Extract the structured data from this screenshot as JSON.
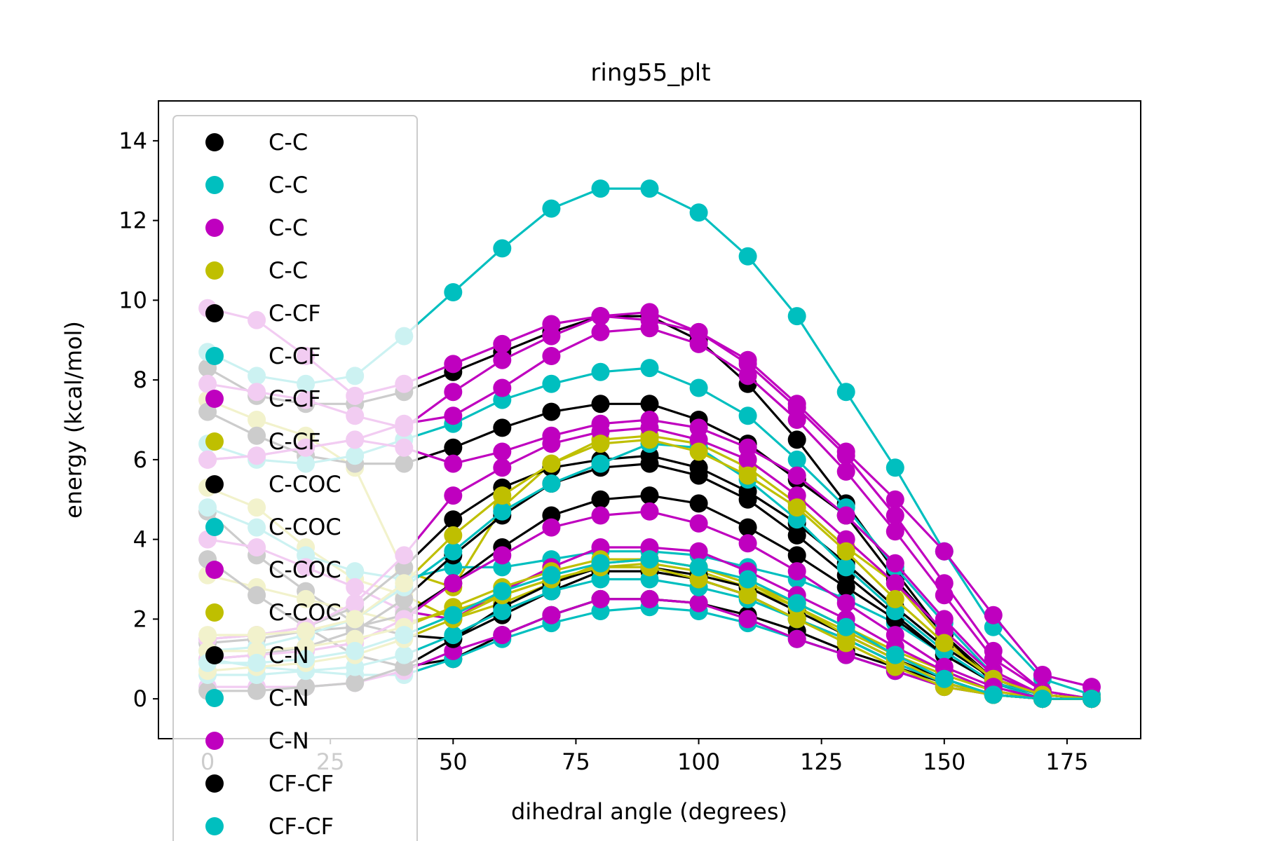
{
  "chart_data": {
    "type": "line",
    "title": "ring55_plt",
    "xlabel": "dihedral angle (degrees)",
    "ylabel": "energy (kcal/mol)",
    "xlim": [
      -10,
      190
    ],
    "ylim": [
      -1,
      15
    ],
    "x_ticks": [
      0,
      25,
      50,
      75,
      100,
      125,
      150,
      175
    ],
    "y_ticks": [
      0,
      2,
      4,
      6,
      8,
      10,
      12,
      14
    ],
    "grid": false,
    "legend_position": "upper-left",
    "x": [
      0,
      10,
      20,
      30,
      40,
      50,
      60,
      70,
      80,
      90,
      100,
      110,
      120,
      130,
      140,
      150,
      160,
      170,
      180
    ],
    "series": [
      {
        "name": "C-C",
        "color": "#000000",
        "values": [
          8.3,
          7.6,
          7.4,
          7.4,
          7.7,
          8.2,
          8.7,
          9.2,
          9.6,
          9.6,
          9.0,
          7.9,
          6.5,
          4.9,
          3.2,
          1.6,
          0.5,
          0.1,
          0.0
        ]
      },
      {
        "name": "C-C",
        "color": "#00bfbf",
        "values": [
          8.7,
          8.1,
          7.9,
          8.1,
          9.1,
          10.2,
          11.3,
          12.3,
          12.8,
          12.8,
          12.2,
          11.1,
          9.6,
          7.7,
          5.8,
          3.7,
          1.8,
          0.5,
          0.1
        ]
      },
      {
        "name": "C-C",
        "color": "#bf00bf",
        "values": [
          9.8,
          9.5,
          8.6,
          7.6,
          7.9,
          8.4,
          8.9,
          9.4,
          9.6,
          9.7,
          9.2,
          8.5,
          7.4,
          6.2,
          5.0,
          3.7,
          2.1,
          0.6,
          0.3
        ]
      },
      {
        "name": "C-C",
        "color": "#bfbf00",
        "values": [
          7.5,
          7.0,
          6.6,
          5.8,
          3.2,
          2.8,
          4.8,
          5.9,
          6.5,
          6.6,
          6.4,
          5.8,
          4.9,
          3.8,
          2.9,
          1.5,
          0.5,
          0.1,
          0.0
        ]
      },
      {
        "name": "C-CF",
        "color": "#000000",
        "values": [
          7.2,
          6.6,
          6.1,
          5.9,
          5.9,
          6.3,
          6.8,
          7.2,
          7.4,
          7.4,
          7.0,
          6.4,
          5.5,
          4.6,
          3.0,
          1.6,
          0.4,
          0.0,
          0.0
        ]
      },
      {
        "name": "C-CF",
        "color": "#00bfbf",
        "values": [
          6.4,
          6.0,
          5.9,
          6.1,
          6.5,
          6.9,
          7.5,
          7.9,
          8.2,
          8.3,
          7.8,
          7.1,
          6.0,
          4.8,
          3.3,
          1.9,
          0.6,
          0.1,
          0.0
        ]
      },
      {
        "name": "C-CF",
        "color": "#bf00bf",
        "values": [
          7.9,
          7.7,
          7.5,
          7.1,
          6.8,
          7.7,
          8.5,
          9.1,
          9.6,
          9.5,
          9.2,
          8.4,
          7.3,
          6.1,
          4.6,
          2.9,
          1.2,
          0.2,
          0.0
        ]
      },
      {
        "name": "C-CF",
        "color": "#bfbf00",
        "values": [
          5.3,
          4.8,
          3.8,
          3.0,
          2.6,
          2.0,
          2.4,
          2.9,
          3.4,
          3.5,
          3.3,
          2.9,
          2.4,
          1.8,
          1.2,
          0.7,
          0.2,
          0.0,
          0.0
        ]
      },
      {
        "name": "C-COC",
        "color": "#000000",
        "values": [
          4.7,
          3.6,
          2.7,
          1.9,
          1.6,
          1.5,
          2.1,
          2.7,
          3.2,
          3.2,
          3.0,
          2.6,
          2.0,
          1.5,
          0.9,
          0.4,
          0.1,
          0.0,
          0.0
        ]
      },
      {
        "name": "C-COC",
        "color": "#00bfbf",
        "values": [
          4.8,
          4.3,
          3.6,
          3.2,
          3.0,
          3.3,
          3.3,
          3.5,
          3.7,
          3.7,
          3.6,
          3.3,
          3.0,
          2.5,
          1.9,
          1.1,
          0.4,
          0.0,
          0.0
        ]
      },
      {
        "name": "C-COC",
        "color": "#bf00bf",
        "values": [
          4.0,
          3.8,
          3.3,
          2.8,
          2.2,
          2.0,
          2.7,
          3.3,
          3.8,
          3.8,
          3.7,
          3.2,
          2.6,
          2.0,
          1.3,
          0.7,
          0.2,
          0.0,
          0.0
        ]
      },
      {
        "name": "C-COC",
        "color": "#bfbf00",
        "values": [
          3.1,
          2.8,
          2.5,
          2.2,
          1.9,
          2.2,
          2.6,
          3.0,
          3.3,
          3.4,
          3.2,
          2.8,
          2.3,
          1.7,
          1.1,
          0.6,
          0.2,
          0.0,
          0.0
        ]
      },
      {
        "name": "C-N",
        "color": "#000000",
        "values": [
          3.5,
          2.6,
          1.8,
          1.1,
          0.8,
          1.0,
          1.6,
          2.1,
          2.5,
          2.5,
          2.4,
          2.1,
          1.7,
          1.2,
          0.8,
          0.4,
          0.1,
          0.0,
          0.0
        ]
      },
      {
        "name": "C-N",
        "color": "#00bfbf",
        "values": [
          1.0,
          0.8,
          0.7,
          0.6,
          0.6,
          1.0,
          1.5,
          1.9,
          2.2,
          2.3,
          2.2,
          1.9,
          1.5,
          1.1,
          0.7,
          0.3,
          0.1,
          0.0,
          0.0
        ]
      },
      {
        "name": "C-N",
        "color": "#bf00bf",
        "values": [
          0.3,
          0.3,
          0.3,
          0.4,
          0.7,
          1.2,
          1.6,
          2.1,
          2.5,
          2.5,
          2.4,
          2.0,
          1.5,
          1.1,
          0.7,
          0.3,
          0.1,
          0.0,
          0.0
        ]
      },
      {
        "name": "CF-CF",
        "color": "#000000",
        "values": [
          0.2,
          0.2,
          0.3,
          0.4,
          0.8,
          1.5,
          2.3,
          2.9,
          3.3,
          3.3,
          3.1,
          2.8,
          2.2,
          1.6,
          1.0,
          0.5,
          0.1,
          0.0,
          0.0
        ]
      },
      {
        "name": "CF-CF",
        "color": "#00bfbf",
        "values": [
          0.6,
          0.6,
          0.7,
          0.8,
          1.1,
          1.6,
          2.2,
          2.7,
          3.0,
          3.0,
          2.8,
          2.5,
          2.0,
          1.5,
          0.9,
          0.4,
          0.1,
          0.0,
          0.0
        ]
      },
      {
        "name": "",
        "color": "#bf00bf",
        "values": [
          6.0,
          6.1,
          6.3,
          6.5,
          6.3,
          5.9,
          6.2,
          6.6,
          6.9,
          7.0,
          6.8,
          6.3,
          5.6,
          4.6,
          3.4,
          2.0,
          0.7,
          0.1,
          0.0
        ]
      },
      {
        "name": "",
        "color": "#bf00bf",
        "values": [
          6.0,
          6.1,
          6.3,
          6.5,
          6.9,
          7.1,
          7.8,
          8.6,
          9.2,
          9.3,
          8.9,
          8.1,
          7.0,
          5.7,
          4.2,
          2.6,
          1.0,
          0.2,
          0.0
        ]
      },
      {
        "name": "",
        "color": "#000000",
        "values": [
          1.4,
          1.5,
          1.7,
          1.8,
          2.1,
          2.9,
          3.8,
          4.6,
          5.0,
          5.1,
          4.9,
          4.3,
          3.6,
          2.8,
          2.0,
          1.1,
          0.4,
          0.1,
          0.0
        ]
      },
      {
        "name": "",
        "color": "#000000",
        "values": [
          1.0,
          1.1,
          1.3,
          1.7,
          2.5,
          3.6,
          4.6,
          5.4,
          5.8,
          5.9,
          5.6,
          5.0,
          4.1,
          3.1,
          2.1,
          1.1,
          0.4,
          0.1,
          0.0
        ]
      },
      {
        "name": "",
        "color": "#000000",
        "values": [
          1.5,
          1.6,
          1.8,
          2.3,
          3.3,
          4.5,
          5.3,
          5.8,
          6.0,
          6.1,
          5.8,
          5.2,
          4.4,
          3.4,
          2.3,
          1.3,
          0.5,
          0.1,
          0.0
        ]
      },
      {
        "name": "",
        "color": "#00bfbf",
        "values": [
          1.2,
          1.3,
          1.6,
          2.0,
          2.8,
          3.7,
          4.7,
          5.4,
          5.9,
          6.4,
          6.3,
          5.5,
          4.5,
          3.3,
          2.2,
          1.2,
          0.4,
          0.1,
          0.0
        ]
      },
      {
        "name": "",
        "color": "#bf00bf",
        "values": [
          1.5,
          1.6,
          1.8,
          2.4,
          3.6,
          5.1,
          5.8,
          6.4,
          6.7,
          6.8,
          6.5,
          6.0,
          5.1,
          4.0,
          2.9,
          1.7,
          0.6,
          0.1,
          0.0
        ]
      },
      {
        "name": "",
        "color": "#bfbf00",
        "values": [
          1.6,
          1.6,
          1.7,
          2.0,
          2.9,
          4.1,
          5.1,
          5.9,
          6.4,
          6.5,
          6.2,
          5.6,
          4.8,
          3.7,
          2.5,
          1.4,
          0.5,
          0.1,
          0.0
        ]
      },
      {
        "name": "",
        "color": "#bf00bf",
        "values": [
          1.0,
          1.1,
          1.2,
          1.4,
          2.0,
          2.9,
          3.6,
          4.3,
          4.6,
          4.7,
          4.4,
          3.9,
          3.2,
          2.4,
          1.6,
          0.8,
          0.3,
          0.0,
          0.0
        ]
      },
      {
        "name": "",
        "color": "#bfbf00",
        "values": [
          0.7,
          0.8,
          0.9,
          1.1,
          1.5,
          2.0,
          2.6,
          3.0,
          3.3,
          3.3,
          3.0,
          2.6,
          2.0,
          1.4,
          0.8,
          0.3,
          0.1,
          0.0,
          0.0
        ]
      },
      {
        "name": "",
        "color": "#bfbf00",
        "values": [
          1.2,
          1.2,
          1.3,
          1.5,
          1.8,
          2.3,
          2.8,
          3.2,
          3.5,
          3.5,
          3.3,
          2.9,
          2.3,
          1.6,
          1.0,
          0.4,
          0.1,
          0.0,
          0.0
        ]
      },
      {
        "name": "",
        "color": "#00bfbf",
        "values": [
          0.9,
          0.9,
          1.0,
          1.2,
          1.6,
          2.1,
          2.7,
          3.1,
          3.4,
          3.5,
          3.3,
          3.0,
          2.4,
          1.8,
          1.1,
          0.5,
          0.1,
          0.0,
          0.0
        ]
      }
    ],
    "legend": {
      "entries": [
        {
          "label": "C-C",
          "color": "#000000"
        },
        {
          "label": "C-C",
          "color": "#00bfbf"
        },
        {
          "label": "C-C",
          "color": "#bf00bf"
        },
        {
          "label": "C-C",
          "color": "#bfbf00"
        },
        {
          "label": "C-CF",
          "color": "#000000"
        },
        {
          "label": "C-CF",
          "color": "#00bfbf"
        },
        {
          "label": "C-CF",
          "color": "#bf00bf"
        },
        {
          "label": "C-CF",
          "color": "#bfbf00"
        },
        {
          "label": "C-COC",
          "color": "#000000"
        },
        {
          "label": "C-COC",
          "color": "#00bfbf"
        },
        {
          "label": "C-COC",
          "color": "#bf00bf"
        },
        {
          "label": "C-COC",
          "color": "#bfbf00"
        },
        {
          "label": "C-N",
          "color": "#000000"
        },
        {
          "label": "C-N",
          "color": "#00bfbf"
        },
        {
          "label": "C-N",
          "color": "#bf00bf"
        },
        {
          "label": "CF-CF",
          "color": "#000000"
        },
        {
          "label": "CF-CF",
          "color": "#00bfbf"
        }
      ]
    }
  }
}
